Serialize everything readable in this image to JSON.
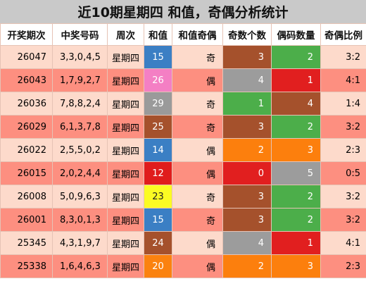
{
  "title": "近10期星期四 和值，奇偶分析统计",
  "headers": [
    "开奖期次",
    "中奖号码",
    "周次",
    "和值",
    "和值奇偶",
    "奇数个数",
    "偶码数量",
    "奇偶比例"
  ],
  "colors": {
    "row_light": "#fddacb",
    "row_dark": "#fd8f80",
    "blue": "#3b7fc4",
    "pink": "#f47fc4",
    "gray": "#9c9c9c",
    "brown": "#a5512c",
    "green": "#4cae4a",
    "red": "#e11f1f",
    "orange": "#fc7f0d",
    "yellow": "#fbfb23"
  },
  "rows": [
    {
      "issue": "26047",
      "numbers": "3,3,0,4,5",
      "week": "星期四",
      "sum": "15",
      "sum_color": "blue",
      "sum_parity": "奇",
      "odd_count": "3",
      "odd_color": "brown",
      "even_count": "2",
      "even_color": "green",
      "ratio": "3:2",
      "shade": "light"
    },
    {
      "issue": "26043",
      "numbers": "1,7,9,2,7",
      "week": "星期四",
      "sum": "26",
      "sum_color": "pink",
      "sum_parity": "偶",
      "odd_count": "4",
      "odd_color": "gray",
      "even_count": "1",
      "even_color": "red",
      "ratio": "4:1",
      "shade": "dark"
    },
    {
      "issue": "26036",
      "numbers": "7,8,8,2,4",
      "week": "星期四",
      "sum": "29",
      "sum_color": "gray",
      "sum_parity": "奇",
      "odd_count": "1",
      "odd_color": "green",
      "even_count": "4",
      "even_color": "brown",
      "ratio": "1:4",
      "shade": "light"
    },
    {
      "issue": "26029",
      "numbers": "6,1,3,7,8",
      "week": "星期四",
      "sum": "25",
      "sum_color": "brown",
      "sum_parity": "奇",
      "odd_count": "3",
      "odd_color": "brown",
      "even_count": "2",
      "even_color": "green",
      "ratio": "3:2",
      "shade": "dark"
    },
    {
      "issue": "26022",
      "numbers": "2,5,5,0,2",
      "week": "星期四",
      "sum": "14",
      "sum_color": "blue",
      "sum_parity": "偶",
      "odd_count": "2",
      "odd_color": "orange",
      "even_count": "3",
      "even_color": "orange",
      "ratio": "2:3",
      "shade": "light"
    },
    {
      "issue": "26015",
      "numbers": "2,0,2,4,4",
      "week": "星期四",
      "sum": "12",
      "sum_color": "red",
      "sum_parity": "偶",
      "odd_count": "0",
      "odd_color": "red",
      "even_count": "5",
      "even_color": "gray",
      "ratio": "0:5",
      "shade": "dark"
    },
    {
      "issue": "26008",
      "numbers": "5,0,9,6,3",
      "week": "星期四",
      "sum": "23",
      "sum_color": "yellow",
      "sum_parity": "奇",
      "odd_count": "3",
      "odd_color": "brown",
      "even_count": "2",
      "even_color": "green",
      "ratio": "3:2",
      "shade": "light"
    },
    {
      "issue": "26001",
      "numbers": "8,3,0,1,3",
      "week": "星期四",
      "sum": "15",
      "sum_color": "blue",
      "sum_parity": "奇",
      "odd_count": "3",
      "odd_color": "brown",
      "even_count": "2",
      "even_color": "green",
      "ratio": "3:2",
      "shade": "dark"
    },
    {
      "issue": "25345",
      "numbers": "4,3,1,9,7",
      "week": "星期四",
      "sum": "24",
      "sum_color": "brown",
      "sum_parity": "偶",
      "odd_count": "4",
      "odd_color": "gray",
      "even_count": "1",
      "even_color": "red",
      "ratio": "4:1",
      "shade": "light"
    },
    {
      "issue": "25338",
      "numbers": "1,6,4,6,3",
      "week": "星期四",
      "sum": "20",
      "sum_color": "orange",
      "sum_parity": "偶",
      "odd_count": "2",
      "odd_color": "orange",
      "even_count": "3",
      "even_color": "orange",
      "ratio": "2:3",
      "shade": "dark"
    }
  ]
}
